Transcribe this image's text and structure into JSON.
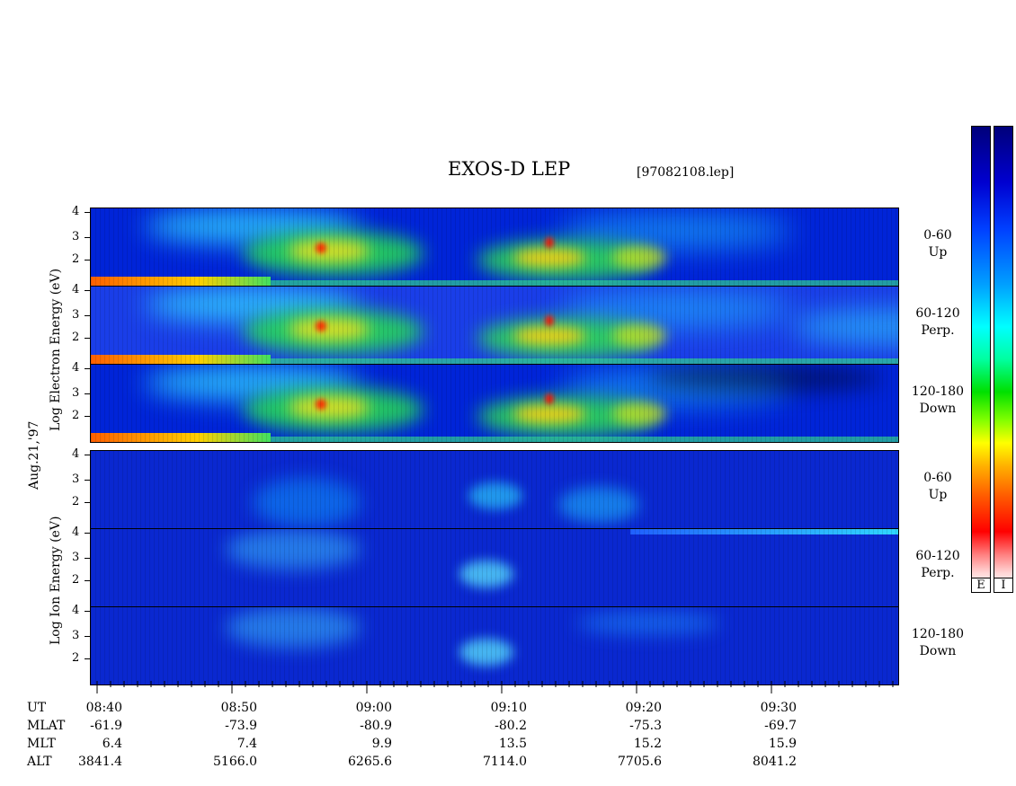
{
  "header": {
    "title": "EXOS-D LEP",
    "file": "[97082108.lep]"
  },
  "side_labels": {
    "electron": "Log  Electron  Energy (eV)",
    "date": "Aug.21,'97",
    "ion": "Log  Ion  Energy (eV)"
  },
  "panels": [
    {
      "id": "e-up",
      "species": "electron",
      "label_line1": "0-60",
      "label_line2": "Up",
      "bg": "#0024d8",
      "has_low_band": true
    },
    {
      "id": "e-perp",
      "species": "electron",
      "label_line1": "60-120",
      "label_line2": "Perp.",
      "bg": "#1a3ee8",
      "has_low_band": true
    },
    {
      "id": "e-down",
      "species": "electron",
      "label_line1": "120-180",
      "label_line2": "Down",
      "bg": "#0024d8",
      "has_low_band": true
    },
    {
      "id": "i-up",
      "species": "ion",
      "label_line1": "0-60",
      "label_line2": "Up",
      "bg": "#0a28d0",
      "has_low_band": false
    },
    {
      "id": "i-perp",
      "species": "ion",
      "label_line1": "60-120",
      "label_line2": "Perp.",
      "bg": "#0a28d0",
      "has_low_band": false
    },
    {
      "id": "i-down",
      "species": "ion",
      "label_line1": "120-180",
      "label_line2": "Down",
      "bg": "#0a28d0",
      "has_low_band": false
    }
  ],
  "y_ticks": [
    "4",
    "3",
    "2"
  ],
  "x_axis": {
    "row_labels": [
      "UT",
      "MLAT",
      "MLT",
      "ALT"
    ],
    "columns": [
      {
        "UT": "08:40",
        "MLAT": "-61.9",
        "MLT": "6.4",
        "ALT": "3841.4"
      },
      {
        "UT": "08:50",
        "MLAT": "-73.9",
        "MLT": "7.4",
        "ALT": "5166.0"
      },
      {
        "UT": "09:00",
        "MLAT": "-80.9",
        "MLT": "9.9",
        "ALT": "6265.6"
      },
      {
        "UT": "09:10",
        "MLAT": "-80.2",
        "MLT": "13.5",
        "ALT": "7114.0"
      },
      {
        "UT": "09:20",
        "MLAT": "-75.3",
        "MLT": "15.2",
        "ALT": "7705.6"
      },
      {
        "UT": "09:30",
        "MLAT": "-69.7",
        "MLT": "15.9",
        "ALT": "8041.2"
      }
    ]
  },
  "colorbars": [
    {
      "label": "E"
    },
    {
      "label": "I"
    }
  ],
  "chart_data": {
    "type": "heatmap",
    "title": "EXOS-D LEP",
    "subtitle": "[97082108.lep]",
    "x_ticks": [
      "08:40",
      "08:50",
      "09:00",
      "09:10",
      "09:20",
      "09:30"
    ],
    "y_ticks": [
      "4",
      "3",
      "2"
    ],
    "ylabel_electron": "Log Electron Energy (eV)",
    "ylabel_ion": "Log Ion Energy (eV)",
    "date_label": "Aug.21,'97",
    "panels": [
      "0-60 Up",
      "60-120 Perp.",
      "120-180 Down",
      "0-60 Up",
      "60-120 Perp.",
      "120-180 Down"
    ],
    "colorbar_labels": [
      "E",
      "I"
    ]
  }
}
